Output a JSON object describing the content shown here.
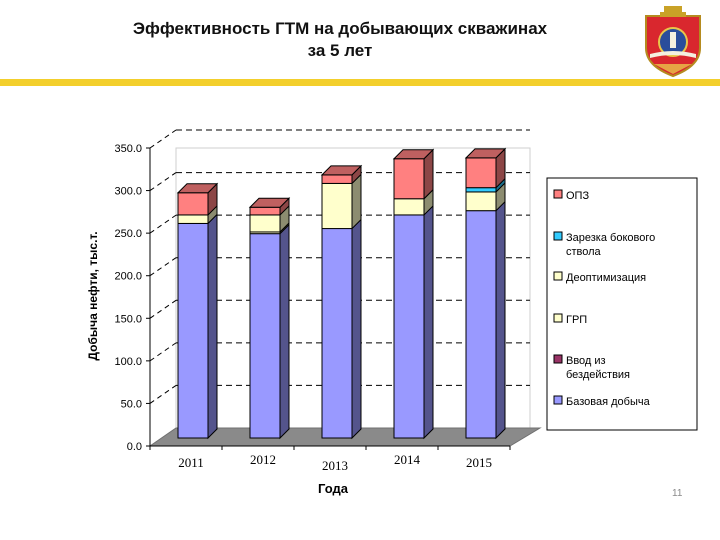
{
  "slide": {
    "title_line1": "Эффективность ГТМ на добывающих скважинах",
    "title_line2": "за 5 лет",
    "number": "11"
  },
  "colors": {
    "accent_bar": "#f3cf2c",
    "base": "#9999ff",
    "base_dark": "#5555c8",
    "grp": "#ffffcc",
    "grp_dark": "#a6a686",
    "reentry": "#993366",
    "optimization": "#ffffcc",
    "sidetrack": "#33ccff",
    "opz": "#ff8080",
    "opz_dark": "#9b4040",
    "floor": "#8a8a8a"
  },
  "chart_data": {
    "type": "bar",
    "stacked": true,
    "three_d": true,
    "categories": [
      "2011",
      "2012",
      "2013",
      "2014",
      "2015"
    ],
    "series": [
      {
        "name": "Базовая добыча",
        "color": "#9999ff",
        "values": [
          252,
          240,
          246,
          262,
          267
        ]
      },
      {
        "name": "Ввод из бездействия",
        "color": "#993366",
        "values": [
          0,
          0,
          0,
          0,
          0
        ]
      },
      {
        "name": "ГРП",
        "color": "#ffffcc",
        "values": [
          0,
          2,
          0,
          0,
          0
        ]
      },
      {
        "name": "Деоптимизация",
        "color": "#ffffcc",
        "values": [
          10,
          20,
          53,
          19,
          22
        ]
      },
      {
        "name": "Зарезка бокового ствола",
        "color": "#33ccff",
        "values": [
          0,
          0,
          0,
          0,
          5
        ]
      },
      {
        "name": "ОПЗ",
        "color": "#ff8080",
        "values": [
          26,
          9,
          10,
          47,
          35
        ]
      }
    ],
    "legend_order": [
      "ОПЗ",
      "Зарезка бокового ствола",
      "Деоптимизация",
      "ГРП",
      "Ввод из бездействия",
      "Базовая добыча"
    ],
    "ylim": [
      0,
      350
    ],
    "yticks": [
      "0.0",
      "50.0",
      "100.0",
      "150.0",
      "200.0",
      "250.0",
      "300.0",
      "350.0"
    ],
    "xlabel": "Года",
    "ylabel": "Добыча нефти, тыс.т.",
    "grid": "dashed-horizontal",
    "legend_position": "right"
  }
}
